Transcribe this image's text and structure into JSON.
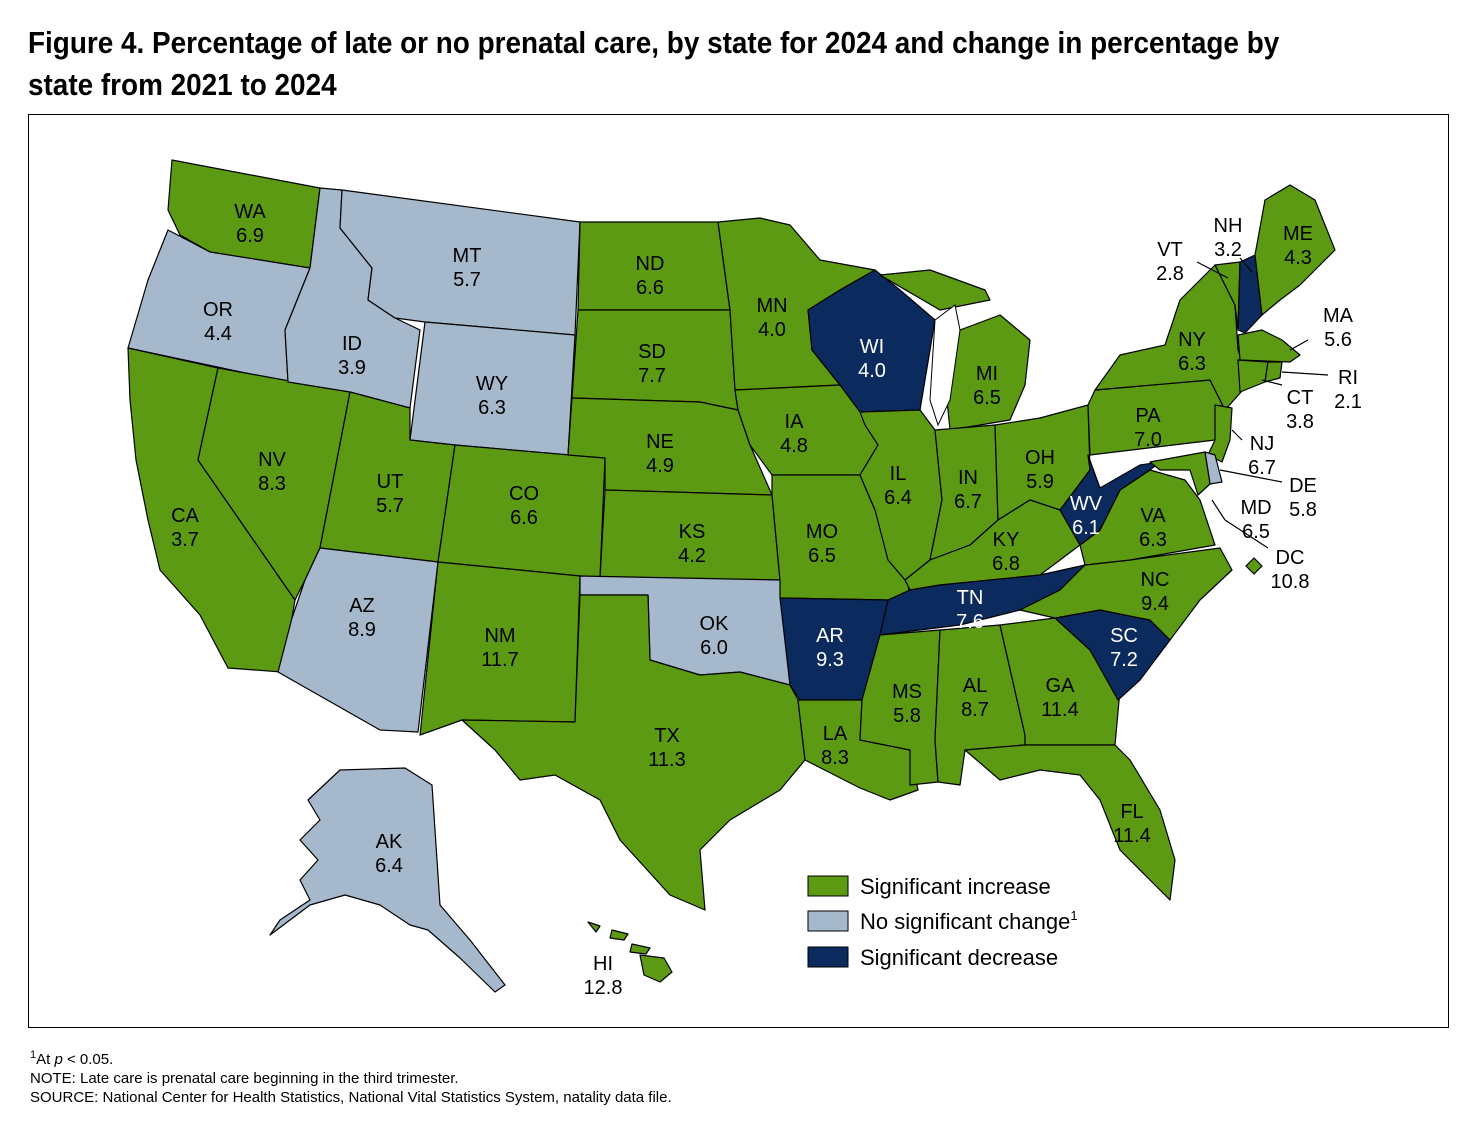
{
  "title_line1": "Figure 4. Percentage of late or no prenatal care, by state for 2024 and change in percentage by",
  "title_line2": "state from 2021 to 2024",
  "colors": {
    "increase": "#5b9a12",
    "no_change": "#a6b8cb",
    "decrease": "#0b2a5e"
  },
  "legend": {
    "increase": "Significant increase",
    "no_change": "No significant change",
    "no_change_sup": "1",
    "decrease": "Significant decrease"
  },
  "states": [
    {
      "abbr": "WA",
      "value": "6.9",
      "status": "increase"
    },
    {
      "abbr": "OR",
      "value": "4.4",
      "status": "no_change"
    },
    {
      "abbr": "CA",
      "value": "3.7",
      "status": "increase"
    },
    {
      "abbr": "NV",
      "value": "8.3",
      "status": "increase"
    },
    {
      "abbr": "ID",
      "value": "3.9",
      "status": "no_change"
    },
    {
      "abbr": "MT",
      "value": "5.7",
      "status": "no_change"
    },
    {
      "abbr": "WY",
      "value": "6.3",
      "status": "no_change"
    },
    {
      "abbr": "UT",
      "value": "5.7",
      "status": "increase"
    },
    {
      "abbr": "AZ",
      "value": "8.9",
      "status": "no_change"
    },
    {
      "abbr": "CO",
      "value": "6.6",
      "status": "increase"
    },
    {
      "abbr": "NM",
      "value": "11.7",
      "status": "increase"
    },
    {
      "abbr": "ND",
      "value": "6.6",
      "status": "increase"
    },
    {
      "abbr": "SD",
      "value": "7.7",
      "status": "increase"
    },
    {
      "abbr": "NE",
      "value": "4.9",
      "status": "increase"
    },
    {
      "abbr": "KS",
      "value": "4.2",
      "status": "increase"
    },
    {
      "abbr": "OK",
      "value": "6.0",
      "status": "no_change"
    },
    {
      "abbr": "TX",
      "value": "11.3",
      "status": "increase"
    },
    {
      "abbr": "MN",
      "value": "4.0",
      "status": "increase"
    },
    {
      "abbr": "IA",
      "value": "4.8",
      "status": "increase"
    },
    {
      "abbr": "MO",
      "value": "6.5",
      "status": "increase"
    },
    {
      "abbr": "AR",
      "value": "9.3",
      "status": "decrease"
    },
    {
      "abbr": "LA",
      "value": "8.3",
      "status": "increase"
    },
    {
      "abbr": "WI",
      "value": "4.0",
      "status": "decrease"
    },
    {
      "abbr": "IL",
      "value": "6.4",
      "status": "increase"
    },
    {
      "abbr": "MI",
      "value": "6.5",
      "status": "increase"
    },
    {
      "abbr": "IN",
      "value": "6.7",
      "status": "increase"
    },
    {
      "abbr": "OH",
      "value": "5.9",
      "status": "increase"
    },
    {
      "abbr": "KY",
      "value": "6.8",
      "status": "increase"
    },
    {
      "abbr": "TN",
      "value": "7.6",
      "status": "decrease"
    },
    {
      "abbr": "MS",
      "value": "5.8",
      "status": "increase"
    },
    {
      "abbr": "AL",
      "value": "8.7",
      "status": "increase"
    },
    {
      "abbr": "GA",
      "value": "11.4",
      "status": "increase"
    },
    {
      "abbr": "FL",
      "value": "11.4",
      "status": "increase"
    },
    {
      "abbr": "SC",
      "value": "7.2",
      "status": "decrease"
    },
    {
      "abbr": "NC",
      "value": "9.4",
      "status": "increase"
    },
    {
      "abbr": "VA",
      "value": "6.3",
      "status": "increase"
    },
    {
      "abbr": "WV",
      "value": "6.1",
      "status": "decrease"
    },
    {
      "abbr": "PA",
      "value": "7.0",
      "status": "increase"
    },
    {
      "abbr": "NY",
      "value": "6.3",
      "status": "increase"
    },
    {
      "abbr": "VT",
      "value": "2.8",
      "status": "increase"
    },
    {
      "abbr": "NH",
      "value": "3.2",
      "status": "decrease"
    },
    {
      "abbr": "ME",
      "value": "4.3",
      "status": "increase"
    },
    {
      "abbr": "MA",
      "value": "5.6",
      "status": "increase"
    },
    {
      "abbr": "RI",
      "value": "2.1",
      "status": "increase"
    },
    {
      "abbr": "CT",
      "value": "3.8",
      "status": "increase"
    },
    {
      "abbr": "NJ",
      "value": "6.7",
      "status": "increase"
    },
    {
      "abbr": "DE",
      "value": "5.8",
      "status": "no_change"
    },
    {
      "abbr": "MD",
      "value": "6.5",
      "status": "increase"
    },
    {
      "abbr": "DC",
      "value": "10.8",
      "status": "increase"
    },
    {
      "abbr": "AK",
      "value": "6.4",
      "status": "no_change"
    },
    {
      "abbr": "HI",
      "value": "12.8",
      "status": "increase"
    }
  ],
  "footnotes": {
    "note1_sup": "1",
    "note1_prefix": "At ",
    "note1_p": "p",
    "note1_rest": " < 0.05.",
    "note": "NOTE: Late care is prenatal care beginning in the third trimester.",
    "source": "SOURCE: National Center for Health Statistics, National Vital Statistics System, natality data file."
  }
}
